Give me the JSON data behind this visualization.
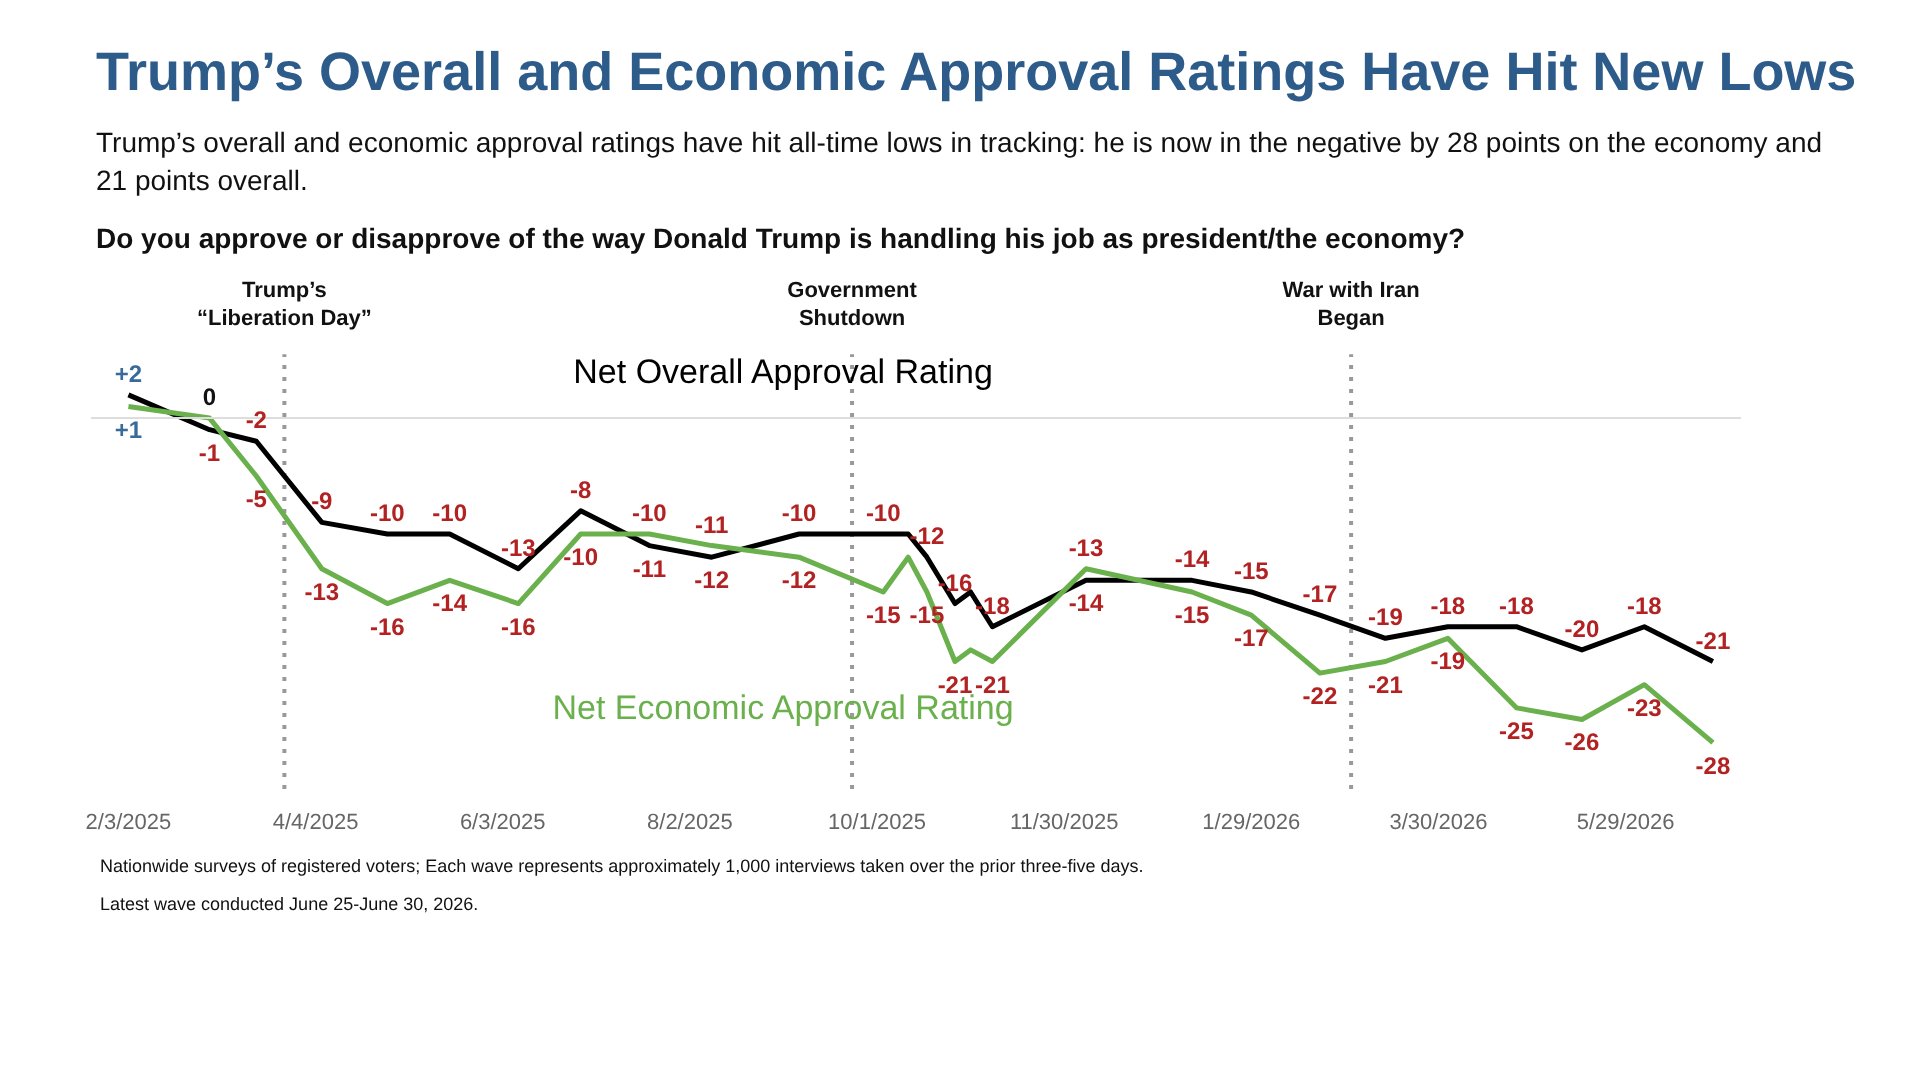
{
  "chart_data": {
    "type": "line",
    "title": "Trump’s Overall and Economic Approval Ratings Have Hit New Lows",
    "subtitle": "Trump’s overall and economic approval ratings have hit all-time lows in tracking: he is now in the negative by 28 points on the economy and 21 points overall.",
    "annotations": [
      "Do you approve or disapprove of the way Donald Trump is handling his job as president/the economy?",
      "Nationwide surveys of registered voters; Each wave represents approximately 1,000 interviews taken over the prior three-five days.",
      "Latest wave conducted June 25-June 30, 2026."
    ],
    "x": [
      "2025-02-03",
      "2025-03-01",
      "2025-03-16",
      "2025-04-06",
      "2025-04-27",
      "2025-05-17",
      "2025-06-08",
      "2025-06-28",
      "2025-07-20",
      "2025-08-09",
      "2025-09-06",
      "2025-10-03",
      "2025-10-11",
      "2025-10-17",
      "2025-10-26",
      "2025-10-31",
      "2025-11-07",
      "2025-12-07",
      "2026-01-10",
      "2026-01-29",
      "2026-02-20",
      "2026-03-13",
      "2026-04-02",
      "2026-04-24",
      "2026-05-15",
      "2026-06-04",
      "2026-06-26"
    ],
    "series": [
      {
        "name": "Net Overall Approval Rating",
        "color": "#000000",
        "values": [
          2,
          -1,
          -2,
          -9,
          -10,
          -10,
          -13,
          -8,
          -11,
          -12,
          -10,
          -10,
          -10,
          -12,
          -16,
          -15,
          -18,
          -14,
          -14,
          -15,
          -17,
          -19,
          -18,
          -18,
          -20,
          -18,
          -21
        ],
        "value_labels": [
          "+2",
          "-1",
          "-2",
          "-9",
          "-10",
          "-10",
          "-13",
          "-8",
          "-11",
          "-12",
          "-10",
          "-10",
          null,
          "-12",
          "-16",
          null,
          "-18",
          "-14",
          "-14",
          "-15",
          "-17",
          "-19",
          "-18",
          "-18",
          "-20",
          "-18",
          "-21"
        ]
      },
      {
        "name": "Net Economic Approval Rating",
        "color": "#6ab04c",
        "values": [
          1,
          0,
          -5,
          -13,
          -16,
          -14,
          -16,
          -10,
          -10,
          -11,
          -12,
          -15,
          -12,
          -15,
          -21,
          -20,
          -21,
          -13,
          -15,
          -17,
          -22,
          -21,
          -19,
          -25,
          -26,
          -23,
          -28
        ],
        "value_labels": [
          "+1",
          "0",
          "-5",
          "-13",
          "-16",
          "-14",
          "-16",
          "-10",
          "-10",
          "-11",
          "-12",
          "-15",
          null,
          "-15",
          "-21",
          null,
          "-21",
          "-13",
          "-15",
          "-17",
          "-22",
          "-21",
          "-19",
          "-25",
          "-26",
          "-23",
          "-28"
        ]
      }
    ],
    "xlim": [
      "2025-01-22",
      "2026-07-05"
    ],
    "xticks": [
      {
        "value": "2025-02-03",
        "label": "2/3/2025"
      },
      {
        "value": "2025-04-04",
        "label": "4/4/2025"
      },
      {
        "value": "2025-06-03",
        "label": "6/3/2025"
      },
      {
        "value": "2025-08-02",
        "label": "8/2/2025"
      },
      {
        "value": "2025-10-01",
        "label": "10/1/2025"
      },
      {
        "value": "2025-11-30",
        "label": "11/30/2025"
      },
      {
        "value": "2026-01-29",
        "label": "1/29/2026"
      },
      {
        "value": "2026-03-30",
        "label": "3/30/2026"
      },
      {
        "value": "2026-05-29",
        "label": "5/29/2026"
      }
    ],
    "tick_labels": "x",
    "grid": false,
    "line_style": "solid",
    "ref_lines": [
      {
        "axis": "x",
        "value": "2025-03-25",
        "label": "Trump’s\n“Liberation Day”",
        "line_style": "dotted",
        "color": "#999999"
      },
      {
        "axis": "x",
        "value": "2025-09-23",
        "label": "Government\nShutdown",
        "line_style": "dotted",
        "color": "#999999"
      },
      {
        "axis": "x",
        "value": "2026-03-02",
        "label": "War with Iran\nBegan",
        "line_style": "dotted",
        "color": "#999999"
      },
      {
        "axis": "y",
        "value": 0,
        "color": "#dddddd",
        "line_style": "solid"
      }
    ]
  }
}
